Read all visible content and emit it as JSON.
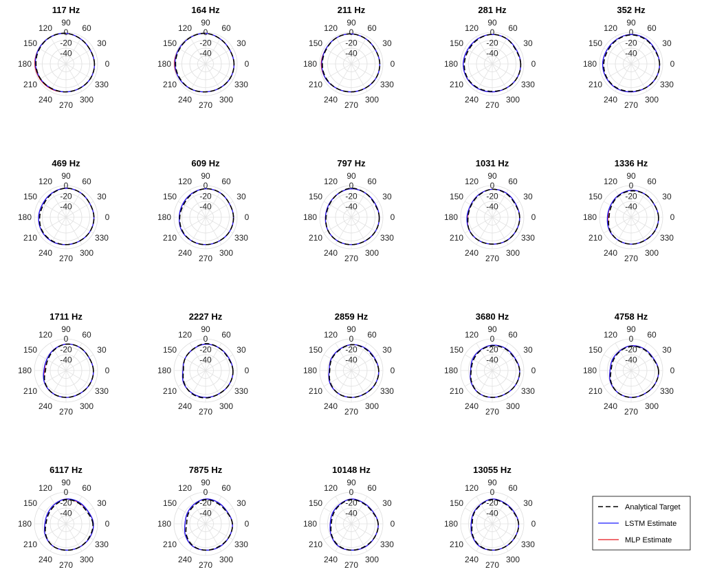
{
  "chart_data": {
    "type": "polar",
    "angle_unit": "degrees",
    "angle_ticks": [
      "0",
      "30",
      "60",
      "90",
      "120",
      "150",
      "180",
      "210",
      "240",
      "270",
      "300",
      "330"
    ],
    "r_ticks": [
      "0",
      "-20",
      "-40"
    ],
    "rlim": [
      -60,
      0
    ],
    "grid": true,
    "legend_position": "bottom-right",
    "legend": [
      "Analytical Target",
      "LSTM Estimate",
      "MLP Estimate"
    ],
    "series_styles": [
      {
        "key": "target",
        "color": "#000000",
        "dashed": true
      },
      {
        "key": "lstm",
        "color": "#1a1aff",
        "dashed": false
      },
      {
        "key": "mlp",
        "color": "#e8141a",
        "dashed": false
      }
    ],
    "angles": [
      0,
      30,
      60,
      90,
      120,
      150,
      180,
      210,
      240,
      270,
      300,
      330
    ],
    "panels": [
      {
        "title": "117 Hz",
        "target": [
          -6,
          -7,
          -5,
          -2,
          -1,
          -2,
          -3,
          -4,
          -6,
          -7,
          -7,
          -6
        ],
        "lstm": [
          -6,
          -7,
          -5,
          -2,
          -1,
          -1,
          -2,
          -4,
          -6,
          -7,
          -7,
          -6
        ],
        "mlp": [
          -6,
          -7,
          -5,
          -2,
          -1,
          -1,
          -1,
          -3,
          -5,
          -7,
          -7,
          -6
        ]
      },
      {
        "title": "164 Hz",
        "target": [
          -6,
          -7,
          -5,
          -2,
          -2,
          -3,
          -3,
          -4,
          -5,
          -7,
          -7,
          -6
        ],
        "lstm": [
          -6,
          -7,
          -5,
          -2,
          -2,
          -2,
          -2,
          -3,
          -5,
          -7,
          -7,
          -6
        ],
        "mlp": [
          -6,
          -7,
          -5,
          -2,
          -2,
          -2,
          -1,
          -3,
          -5,
          -7,
          -7,
          -6
        ]
      },
      {
        "title": "211 Hz",
        "target": [
          -6,
          -7,
          -5,
          -3,
          -3,
          -5,
          -5,
          -5,
          -6,
          -7,
          -7,
          -6
        ],
        "lstm": [
          -6,
          -7,
          -5,
          -3,
          -3,
          -4,
          -4,
          -4,
          -6,
          -7,
          -7,
          -6
        ],
        "mlp": [
          -6,
          -7,
          -5,
          -3,
          -3,
          -4,
          -3,
          -4,
          -6,
          -7,
          -7,
          -6
        ]
      },
      {
        "title": "281 Hz",
        "target": [
          -6,
          -8,
          -5,
          -4,
          -6,
          -8,
          -7,
          -6,
          -7,
          -8,
          -7,
          -6
        ],
        "lstm": [
          -6,
          -7,
          -5,
          -4,
          -5,
          -6,
          -5,
          -5,
          -6,
          -7,
          -7,
          -6
        ],
        "mlp": [
          -6,
          -7,
          -5,
          -4,
          -5,
          -6,
          -5,
          -5,
          -6,
          -7,
          -7,
          -6
        ]
      },
      {
        "title": "352 Hz",
        "target": [
          -6,
          -8,
          -6,
          -5,
          -7,
          -9,
          -8,
          -7,
          -7,
          -8,
          -7,
          -6
        ],
        "lstm": [
          -6,
          -7,
          -5,
          -4,
          -6,
          -7,
          -6,
          -6,
          -6,
          -7,
          -7,
          -6
        ],
        "mlp": [
          -6,
          -7,
          -5,
          -4,
          -6,
          -7,
          -6,
          -6,
          -6,
          -7,
          -7,
          -6
        ]
      },
      {
        "title": "469 Hz",
        "target": [
          -7,
          -8,
          -6,
          -5,
          -8,
          -11,
          -10,
          -8,
          -8,
          -8,
          -8,
          -7
        ],
        "lstm": [
          -7,
          -8,
          -6,
          -5,
          -7,
          -9,
          -8,
          -7,
          -7,
          -8,
          -8,
          -7
        ],
        "mlp": [
          -7,
          -8,
          -6,
          -5,
          -7,
          -9,
          -8,
          -7,
          -7,
          -8,
          -8,
          -7
        ]
      },
      {
        "title": "609 Hz",
        "target": [
          -7,
          -8,
          -6,
          -6,
          -9,
          -12,
          -11,
          -9,
          -8,
          -8,
          -8,
          -7
        ],
        "lstm": [
          -7,
          -8,
          -6,
          -6,
          -8,
          -10,
          -10,
          -8,
          -8,
          -8,
          -8,
          -7
        ],
        "mlp": [
          -7,
          -8,
          -6,
          -6,
          -8,
          -10,
          -10,
          -8,
          -8,
          -8,
          -8,
          -7
        ]
      },
      {
        "title": "797 Hz",
        "target": [
          -7,
          -9,
          -7,
          -5,
          -9,
          -12,
          -12,
          -9,
          -8,
          -8,
          -8,
          -7
        ],
        "lstm": [
          -7,
          -8,
          -7,
          -6,
          -9,
          -11,
          -11,
          -9,
          -8,
          -8,
          -8,
          -7
        ],
        "mlp": [
          -7,
          -8,
          -7,
          -6,
          -9,
          -11,
          -11,
          -9,
          -8,
          -8,
          -8,
          -7
        ]
      },
      {
        "title": "1031 Hz",
        "target": [
          -8,
          -10,
          -8,
          -7,
          -11,
          -14,
          -14,
          -10,
          -9,
          -9,
          -8,
          -8
        ],
        "lstm": [
          -8,
          -9,
          -7,
          -7,
          -10,
          -13,
          -12,
          -10,
          -9,
          -9,
          -8,
          -8
        ],
        "mlp": [
          -8,
          -9,
          -7,
          -7,
          -10,
          -13,
          -13,
          -10,
          -9,
          -9,
          -8,
          -8
        ]
      },
      {
        "title": "1336 Hz",
        "target": [
          -8,
          -10,
          -9,
          -10,
          -13,
          -17,
          -18,
          -13,
          -10,
          -9,
          -9,
          -8
        ],
        "lstm": [
          -8,
          -10,
          -9,
          -9,
          -12,
          -15,
          -15,
          -12,
          -10,
          -9,
          -9,
          -8
        ],
        "mlp": [
          -8,
          -10,
          -9,
          -9,
          -12,
          -15,
          -16,
          -12,
          -10,
          -9,
          -9,
          -8
        ]
      },
      {
        "title": "1711 Hz",
        "target": [
          -8,
          -10,
          -9,
          -10,
          -15,
          -20,
          -21,
          -14,
          -10,
          -9,
          -9,
          -8
        ],
        "lstm": [
          -8,
          -10,
          -9,
          -10,
          -14,
          -18,
          -18,
          -13,
          -10,
          -9,
          -9,
          -8
        ],
        "mlp": [
          -8,
          -10,
          -9,
          -10,
          -14,
          -18,
          -19,
          -13,
          -10,
          -9,
          -9,
          -8
        ]
      },
      {
        "title": "2227 Hz",
        "target": [
          -8,
          -11,
          -10,
          -9,
          -13,
          -15,
          -18,
          -13,
          -9,
          -8,
          -9,
          -8
        ],
        "lstm": [
          -8,
          -10,
          -10,
          -10,
          -13,
          -15,
          -17,
          -12,
          -10,
          -9,
          -9,
          -8
        ],
        "mlp": [
          -8,
          -10,
          -10,
          -10,
          -13,
          -15,
          -17,
          -12,
          -10,
          -9,
          -9,
          -8
        ]
      },
      {
        "title": "2859 Hz",
        "target": [
          -8,
          -11,
          -11,
          -11,
          -15,
          -17,
          -19,
          -14,
          -10,
          -9,
          -9,
          -8
        ],
        "lstm": [
          -8,
          -10,
          -10,
          -11,
          -14,
          -16,
          -18,
          -13,
          -10,
          -9,
          -9,
          -8
        ],
        "mlp": [
          -8,
          -10,
          -10,
          -11,
          -14,
          -16,
          -18,
          -13,
          -10,
          -9,
          -9,
          -8
        ]
      },
      {
        "title": "3680 Hz",
        "target": [
          -8,
          -12,
          -12,
          -13,
          -16,
          -19,
          -20,
          -15,
          -10,
          -9,
          -9,
          -8
        ],
        "lstm": [
          -8,
          -11,
          -11,
          -12,
          -15,
          -17,
          -19,
          -14,
          -10,
          -9,
          -9,
          -8
        ],
        "mlp": [
          -8,
          -11,
          -11,
          -12,
          -15,
          -17,
          -19,
          -14,
          -10,
          -9,
          -9,
          -8
        ]
      },
      {
        "title": "4758 Hz",
        "target": [
          -8,
          -13,
          -13,
          -14,
          -18,
          -21,
          -22,
          -16,
          -11,
          -9,
          -9,
          -8
        ],
        "lstm": [
          -8,
          -12,
          -12,
          -13,
          -17,
          -19,
          -20,
          -15,
          -11,
          -9,
          -9,
          -8
        ],
        "mlp": [
          -8,
          -12,
          -12,
          -13,
          -17,
          -19,
          -20,
          -15,
          -11,
          -9,
          -9,
          -8
        ]
      },
      {
        "title": "6117 Hz",
        "target": [
          -9,
          -14,
          -14,
          -14,
          -19,
          -22,
          -22,
          -16,
          -11,
          -10,
          -9,
          -9
        ],
        "lstm": [
          -8,
          -12,
          -12,
          -13,
          -17,
          -20,
          -20,
          -15,
          -11,
          -10,
          -9,
          -8
        ],
        "mlp": [
          -8,
          -12,
          -13,
          -13,
          -17,
          -20,
          -20,
          -15,
          -11,
          -10,
          -9,
          -8
        ]
      },
      {
        "title": "7875 Hz",
        "target": [
          -9,
          -14,
          -15,
          -14,
          -19,
          -22,
          -24,
          -18,
          -12,
          -10,
          -10,
          -9
        ],
        "lstm": [
          -9,
          -13,
          -13,
          -13,
          -17,
          -20,
          -21,
          -16,
          -11,
          -10,
          -9,
          -9
        ],
        "mlp": [
          -9,
          -13,
          -13,
          -13,
          -17,
          -20,
          -21,
          -16,
          -11,
          -10,
          -9,
          -9
        ]
      },
      {
        "title": "10148 Hz",
        "target": [
          -9,
          -14,
          -15,
          -14,
          -18,
          -21,
          -22,
          -17,
          -12,
          -10,
          -10,
          -9
        ],
        "lstm": [
          -9,
          -13,
          -14,
          -13,
          -17,
          -19,
          -20,
          -16,
          -11,
          -10,
          -9,
          -9
        ],
        "mlp": [
          -9,
          -13,
          -14,
          -13,
          -17,
          -19,
          -20,
          -16,
          -11,
          -10,
          -9,
          -9
        ]
      },
      {
        "title": "13055 Hz",
        "target": [
          -10,
          -14,
          -15,
          -14,
          -18,
          -20,
          -22,
          -17,
          -12,
          -10,
          -10,
          -10
        ],
        "lstm": [
          -10,
          -13,
          -14,
          -13,
          -17,
          -19,
          -20,
          -16,
          -11,
          -10,
          -10,
          -10
        ],
        "mlp": [
          -10,
          -13,
          -14,
          -13,
          -17,
          -19,
          -20,
          -16,
          -11,
          -10,
          -10,
          -10
        ]
      }
    ]
  }
}
